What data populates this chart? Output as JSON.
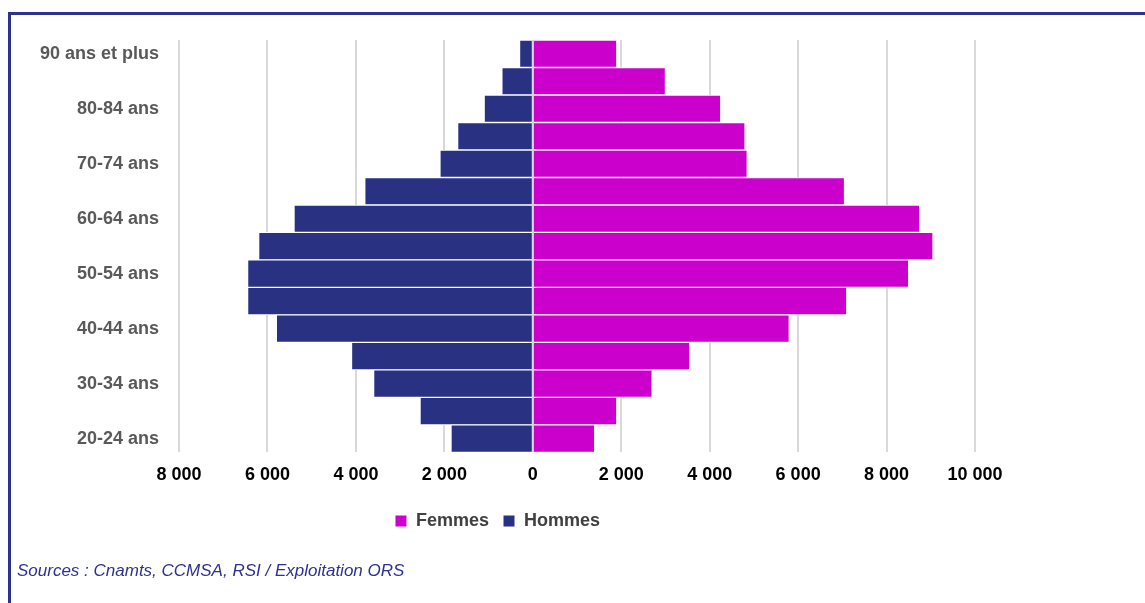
{
  "chart_data": {
    "type": "bar",
    "orientation": "horizontal",
    "stacked": true,
    "categories": [
      "90 ans et plus",
      null,
      "80-84 ans",
      null,
      "70-74 ans",
      null,
      "60-64 ans",
      null,
      "50-54 ans",
      null,
      "40-44 ans",
      null,
      "30-34 ans",
      null,
      "20-24 ans"
    ],
    "series": [
      {
        "name": "Femmes",
        "color": "#cc00cc",
        "values": [
          1900,
          3000,
          4250,
          4800,
          4850,
          7050,
          8750,
          9050,
          8500,
          7100,
          5800,
          3550,
          2700,
          1900,
          1400
        ]
      },
      {
        "name": "Hommes",
        "color": "#283182",
        "values": [
          -300,
          -700,
          -1100,
          -1700,
          -2100,
          -3800,
          -5400,
          -6200,
          -6450,
          -6450,
          -5800,
          -4100,
          -3600,
          -2550,
          -1850
        ]
      }
    ],
    "xlim": [
      -8000,
      10000
    ],
    "xticks": [
      {
        "value": -8000,
        "label": "8 000"
      },
      {
        "value": -6000,
        "label": "6 000"
      },
      {
        "value": -4000,
        "label": "4 000"
      },
      {
        "value": -2000,
        "label": "2 000"
      },
      0,
      {
        "value": 2000,
        "label": "2 000"
      },
      {
        "value": 4000,
        "label": "4 000"
      },
      {
        "value": 6000,
        "label": "6 000"
      },
      {
        "value": 8000,
        "label": "8 000"
      },
      {
        "value": 10000,
        "label": "10 000"
      }
    ],
    "grid": "x",
    "legend": "bottom",
    "annotations": [
      "Sources : Cnamts, CCMSA, RSI / Exploitation ORS"
    ]
  }
}
